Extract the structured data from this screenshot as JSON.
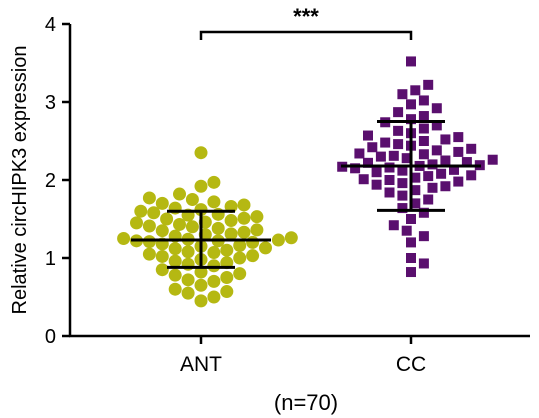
{
  "chart_data": {
    "type": "scatter",
    "ylabel": "Relative circHIPK3 expression",
    "ylim": [
      0,
      4
    ],
    "yticks": [
      "0",
      "1",
      "2",
      "3",
      "4"
    ],
    "categories": [
      "ANT",
      "CC"
    ],
    "footnote": "(n=70)",
    "significance": "***",
    "grid": false,
    "series": [
      {
        "category": "ANT",
        "color": "#b5b812",
        "marker": "circle",
        "mean": 1.23,
        "sd_upper": 1.6,
        "sd_lower": 0.88,
        "values": [
          2.35,
          1.97,
          1.92,
          1.82,
          1.77,
          1.75,
          1.72,
          1.7,
          1.68,
          1.66,
          1.64,
          1.62,
          1.6,
          1.58,
          1.56,
          1.55,
          1.53,
          1.51,
          1.5,
          1.48,
          1.46,
          1.45,
          1.43,
          1.41,
          1.4,
          1.38,
          1.36,
          1.35,
          1.33,
          1.31,
          1.3,
          1.28,
          1.26,
          1.25,
          1.24,
          1.23,
          1.22,
          1.22,
          1.21,
          1.2,
          1.18,
          1.16,
          1.15,
          1.13,
          1.12,
          1.1,
          1.08,
          1.07,
          1.05,
          1.03,
          1.02,
          1.0,
          0.98,
          0.96,
          0.94,
          0.92,
          0.9,
          0.85,
          0.82,
          0.8,
          0.78,
          0.75,
          0.72,
          0.7,
          0.65,
          0.6,
          0.57,
          0.55,
          0.5,
          0.45
        ]
      },
      {
        "category": "CC",
        "color": "#5a0f6e",
        "marker": "square",
        "mean": 2.18,
        "sd_upper": 2.75,
        "sd_lower": 1.61,
        "values": [
          3.52,
          3.22,
          3.15,
          3.1,
          3.02,
          2.97,
          2.92,
          2.87,
          2.82,
          2.78,
          2.74,
          2.7,
          2.66,
          2.63,
          2.6,
          2.57,
          2.55,
          2.52,
          2.5,
          2.48,
          2.46,
          2.44,
          2.42,
          2.4,
          2.38,
          2.36,
          2.34,
          2.33,
          2.31,
          2.3,
          2.28,
          2.26,
          2.25,
          2.23,
          2.22,
          2.2,
          2.19,
          2.18,
          2.17,
          2.16,
          2.15,
          2.13,
          2.12,
          2.1,
          2.08,
          2.06,
          2.05,
          2.03,
          2.01,
          2.0,
          1.98,
          1.96,
          1.94,
          1.92,
          1.9,
          1.87,
          1.84,
          1.8,
          1.75,
          1.7,
          1.64,
          1.58,
          1.5,
          1.42,
          1.35,
          1.28,
          1.2,
          1.0,
          0.93,
          0.82
        ]
      }
    ]
  }
}
